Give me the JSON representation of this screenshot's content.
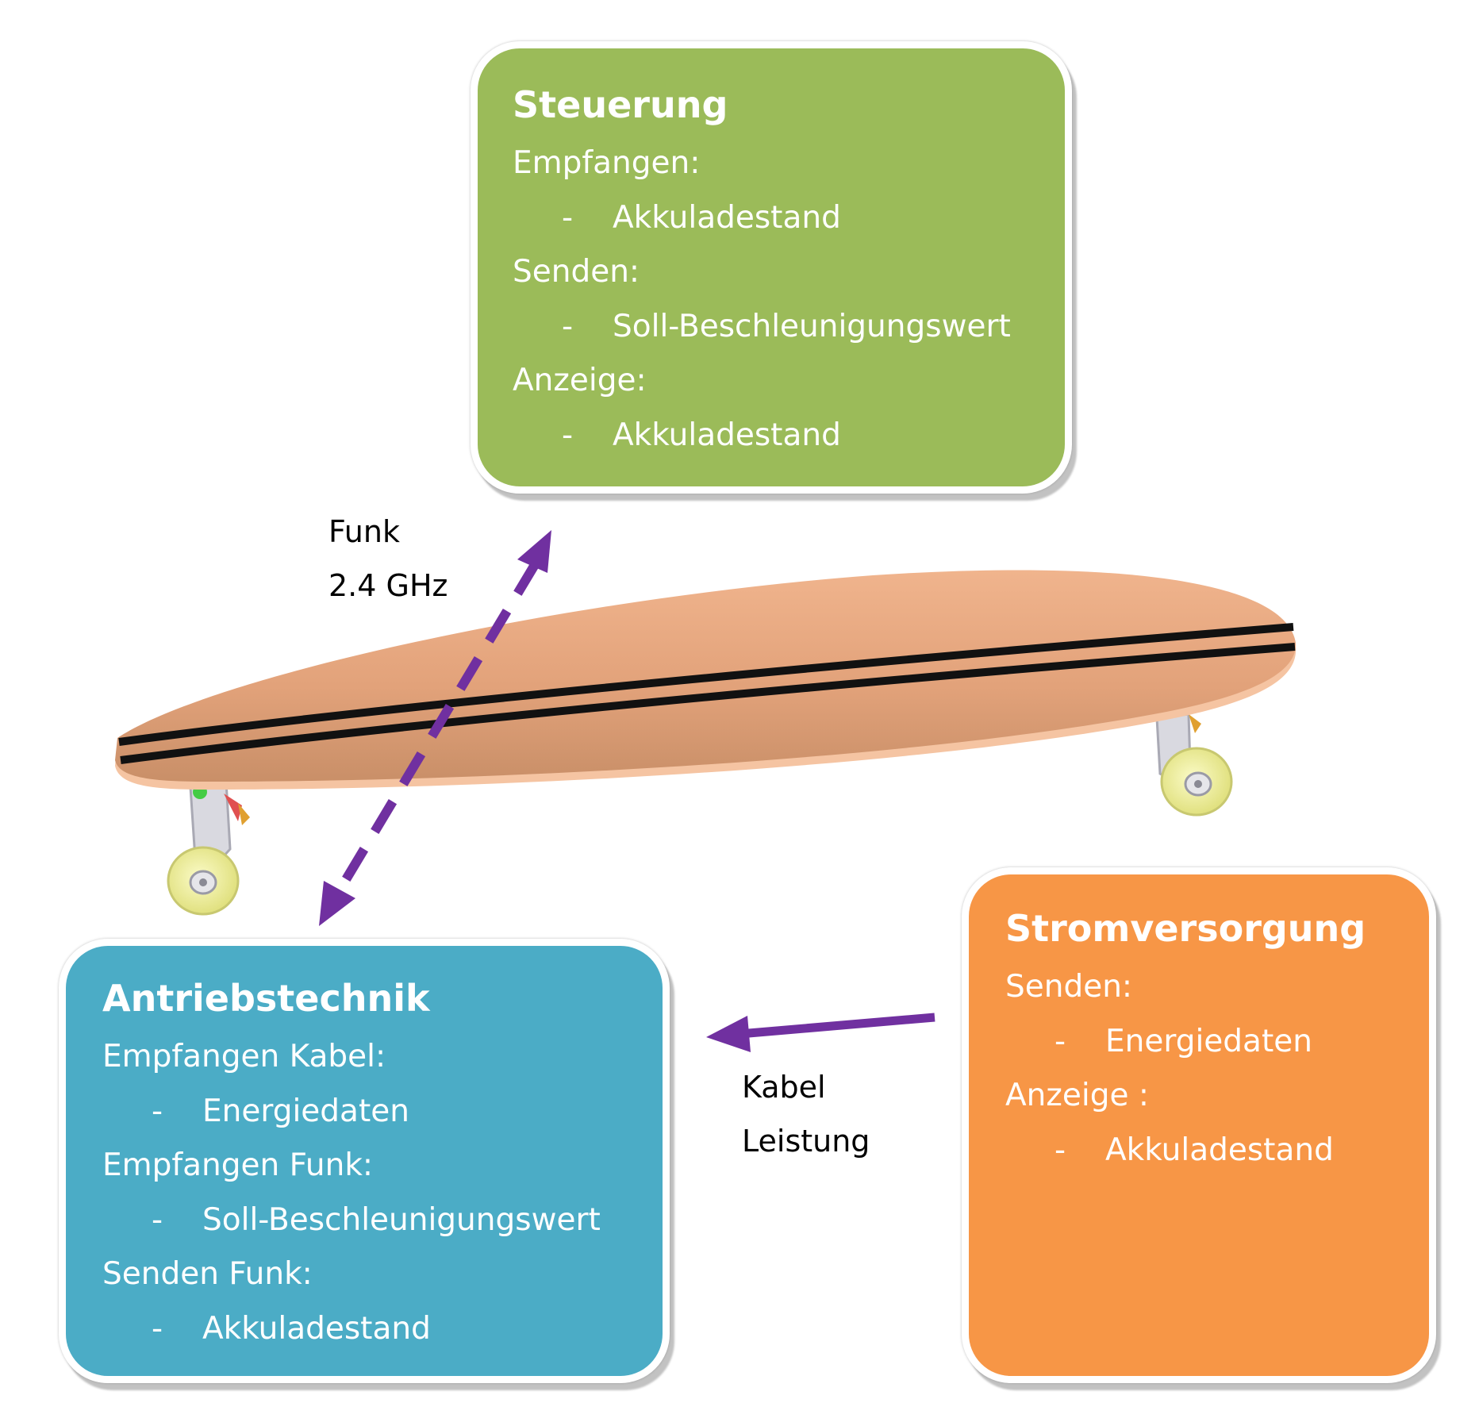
{
  "colors": {
    "steuerung_bg": "#9bbb59",
    "antrieb_bg": "#4bacc6",
    "strom_bg": "#f79646",
    "arrow": "#7030a0",
    "deck": "#eaa77e",
    "wheel": "#f2f2a0"
  },
  "boxes": {
    "steuerung": {
      "title": "Steuerung",
      "sections": [
        {
          "heading": "Empfangen:",
          "items": [
            "Akkuladestand"
          ]
        },
        {
          "heading": "Senden:",
          "items": [
            "Soll-Beschleunigungswert"
          ]
        },
        {
          "heading": "Anzeige:",
          "items": [
            "Akkuladestand"
          ]
        }
      ]
    },
    "antriebstechnik": {
      "title": "Antriebstechnik",
      "sections": [
        {
          "heading": "Empfangen Kabel:",
          "items": [
            "Energiedaten"
          ]
        },
        {
          "heading": "Empfangen Funk:",
          "items": [
            "Soll-Beschleunigungswert"
          ]
        },
        {
          "heading": "Senden Funk:",
          "items": [
            "Akkuladestand"
          ]
        }
      ]
    },
    "stromversorgung": {
      "title": "Stromversorgung",
      "sections": [
        {
          "heading": "Senden:",
          "items": [
            "Energiedaten"
          ]
        },
        {
          "heading": "Anzeige :",
          "items": [
            "Akkuladestand"
          ]
        }
      ]
    }
  },
  "bullet_marker": "-",
  "labels": {
    "funk_line1": "Funk",
    "funk_line2": "2.4 GHz",
    "kabel_line1": "Kabel",
    "kabel_line2": "Leistung"
  },
  "icons": {
    "board": "longboard-illustration",
    "wireless_arrow": "dashed-double-arrow",
    "cable_arrow": "solid-arrow-left"
  }
}
